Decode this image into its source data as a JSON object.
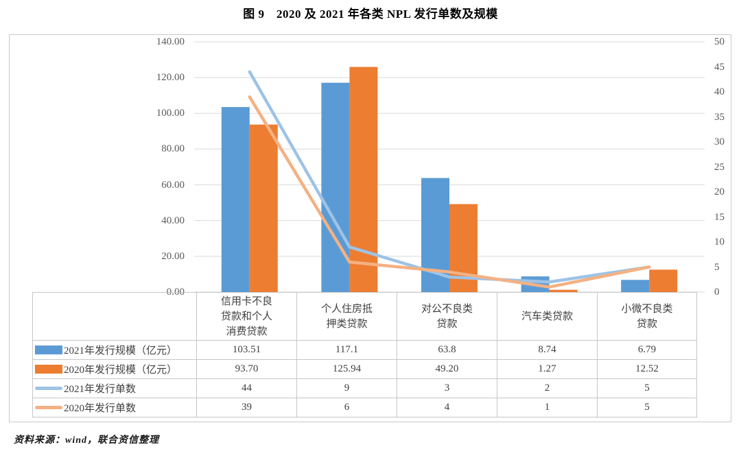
{
  "title": "图 9　2020 及 2021 年各类 NPL 发行单数及规模",
  "source_note": "资料来源：wind，联合资信整理",
  "colors": {
    "bar_2021": "#5B9BD5",
    "bar_2020": "#ED7D31",
    "line_2021": "#9DC3E6",
    "line_2020": "#F4B183",
    "gridline": "#D9D9D9",
    "border": "#C6C6C6",
    "axis_text": "#595959",
    "table_text": "#3F3F3F"
  },
  "chart_data": {
    "type": "combo-bar-line",
    "title": "图 9　2020 及 2021 年各类 NPL 发行单数及规模",
    "categories": [
      "信用卡不良\n贷款和个人\n消费贷款",
      "个人住房抵\n押类贷款",
      "对公不良类\n贷款",
      "汽车类贷款",
      "小微不良类\n贷款"
    ],
    "series": [
      {
        "name": "2021年发行规模（亿元）",
        "chart": "bar",
        "axis": "left",
        "color": "#5B9BD5",
        "values": [
          103.51,
          117.1,
          63.8,
          8.74,
          6.79
        ],
        "display": [
          "103.51",
          "117.1",
          "63.8",
          "8.74",
          "6.79"
        ]
      },
      {
        "name": "2020年发行规模（亿元）",
        "chart": "bar",
        "axis": "left",
        "color": "#ED7D31",
        "values": [
          93.7,
          125.94,
          49.2,
          1.27,
          12.52
        ],
        "display": [
          "93.70",
          "125.94",
          "49.20",
          "1.27",
          "12.52"
        ]
      },
      {
        "name": "2021年发行单数",
        "chart": "line",
        "axis": "right",
        "color": "#9DC3E6",
        "values": [
          44,
          9,
          3,
          2,
          5
        ],
        "display": [
          "44",
          "9",
          "3",
          "2",
          "5"
        ]
      },
      {
        "name": "2020年发行单数",
        "chart": "line",
        "axis": "right",
        "color": "#F4B183",
        "values": [
          39,
          6,
          4,
          1,
          5
        ],
        "display": [
          "39",
          "6",
          "4",
          "1",
          "5"
        ]
      }
    ],
    "left_axis": {
      "min": 0,
      "max": 140,
      "step": 20,
      "tick_labels": [
        "140.00",
        "120.00",
        "100.00",
        "80.00",
        "60.00",
        "40.00",
        "20.00",
        "0.00"
      ]
    },
    "right_axis": {
      "min": 0,
      "max": 50,
      "step": 5,
      "tick_labels": [
        "50",
        "45",
        "40",
        "35",
        "30",
        "25",
        "20",
        "15",
        "10",
        "5",
        "0"
      ]
    },
    "grid": "horizontal",
    "legend_position": "table-first-column"
  }
}
